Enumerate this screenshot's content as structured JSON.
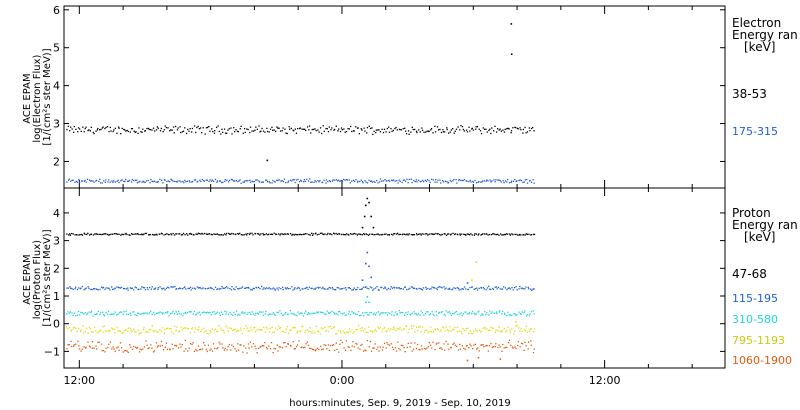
{
  "chart_data": [
    {
      "type": "scatter",
      "panel": "electron",
      "ylabel_lines": [
        "ACE EPAM",
        "log(Electron Flux)",
        "[1/(cm²s ster MeV)]"
      ],
      "ylim": [
        1.3,
        6.1
      ],
      "yticks": [
        2,
        3,
        4,
        5,
        6
      ],
      "legend_title_lines": [
        "Electron",
        "Energy ran",
        "[keV]"
      ],
      "series": [
        {
          "name": "38-53",
          "color": "#000000",
          "baseline": 2.85,
          "noise": 0.08,
          "points": [
            {
              "x": -3.45,
              "y": 2.05
            },
            {
              "x": 7.7,
              "y": 5.65
            },
            {
              "x": 7.72,
              "y": 4.85
            }
          ]
        },
        {
          "name": "175-315",
          "color": "#1f5fd6",
          "baseline": 1.5,
          "noise": 0.04,
          "points": []
        }
      ]
    },
    {
      "type": "scatter",
      "panel": "proton",
      "ylabel_lines": [
        "ACE EPAM",
        "log(Proton Flux)",
        "[1/(cm²s ster MeV)]"
      ],
      "ylim": [
        -1.6,
        4.9
      ],
      "yticks": [
        -1,
        0,
        1,
        2,
        3,
        4
      ],
      "legend_title_lines": [
        "Proton",
        "Energy ran",
        "[keV]"
      ],
      "series": [
        {
          "name": "47-68",
          "color": "#000000",
          "baseline": 3.25,
          "noise": 0.03,
          "points": [
            {
              "x": 0.9,
              "y": 3.5
            },
            {
              "x": 1.0,
              "y": 3.9
            },
            {
              "x": 1.05,
              "y": 4.3
            },
            {
              "x": 1.12,
              "y": 4.55
            },
            {
              "x": 1.2,
              "y": 4.4
            },
            {
              "x": 1.3,
              "y": 3.9
            },
            {
              "x": 1.4,
              "y": 3.5
            }
          ]
        },
        {
          "name": "115-195",
          "color": "#1f5fd6",
          "baseline": 1.3,
          "noise": 0.05,
          "points": [
            {
              "x": 0.9,
              "y": 1.6
            },
            {
              "x": 1.05,
              "y": 2.2
            },
            {
              "x": 1.12,
              "y": 2.6
            },
            {
              "x": 1.2,
              "y": 2.1
            },
            {
              "x": 1.3,
              "y": 1.7
            },
            {
              "x": 5.7,
              "y": 1.5
            }
          ]
        },
        {
          "name": "310-580",
          "color": "#1ad6e0",
          "baseline": 0.4,
          "noise": 0.07,
          "points": [
            {
              "x": 1.05,
              "y": 0.8
            },
            {
              "x": 1.12,
              "y": 1.0
            },
            {
              "x": 1.2,
              "y": 0.8
            }
          ]
        },
        {
          "name": "795-1193",
          "color": "#dede12",
          "baseline": -0.2,
          "noise": 0.12,
          "points": [
            {
              "x": 6.1,
              "y": 2.25
            },
            {
              "x": 5.9,
              "y": 1.6
            },
            {
              "x": 7.9,
              "y": 0.1
            }
          ]
        },
        {
          "name": "1060-1900",
          "color": "#e35a0e",
          "baseline": -0.8,
          "noise": 0.16,
          "points": [
            {
              "x": 5.7,
              "y": -1.3
            },
            {
              "x": 6.2,
              "y": -1.2
            },
            {
              "x": 7.2,
              "y": -1.25
            }
          ]
        }
      ]
    }
  ],
  "x_axis": {
    "xlim": [
      -12.7,
      17.5
    ],
    "data_end": 8.8,
    "ticks": [
      {
        "x": -12,
        "label": "12:00"
      },
      {
        "x": 0,
        "label": "0:00"
      },
      {
        "x": 12,
        "label": "12:00"
      }
    ],
    "minor_step": 2,
    "xlabel": "hours:minutes, Sep.  9, 2019 - Sep. 10, 2019"
  }
}
